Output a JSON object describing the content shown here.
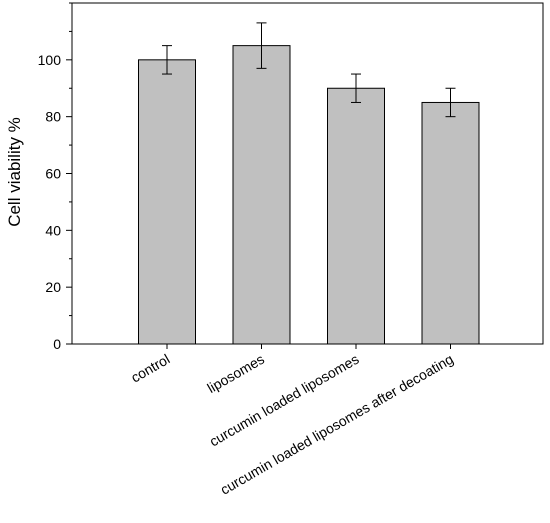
{
  "chart_data": {
    "type": "bar",
    "title": "",
    "xlabel": "",
    "ylabel": "Cell viability %",
    "ylim": [
      0,
      120
    ],
    "yticks": [
      0,
      20,
      40,
      60,
      80,
      100
    ],
    "yminor_step": 10,
    "grid": false,
    "categories": [
      "control",
      "liposomes",
      "curcumin loaded liposomes",
      "curcumin loaded liposomes after decoating"
    ],
    "values": [
      100,
      105,
      90,
      85
    ],
    "errors": [
      5,
      8,
      5,
      5
    ],
    "bar_color": "#c0c0c0",
    "bar_edge_color": "#000000"
  }
}
